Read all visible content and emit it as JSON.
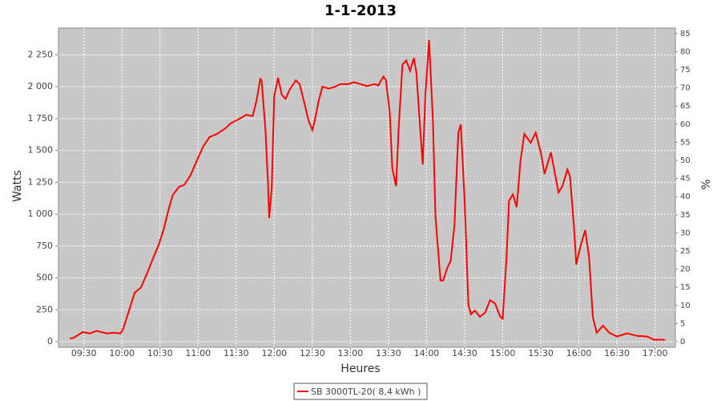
{
  "chart_data": {
    "type": "line",
    "title": "1-1-2013",
    "x_label": "Heures",
    "y_label": "Watts",
    "y2_label": "%",
    "x": [
      "09:19",
      "09:22",
      "09:29",
      "09:35",
      "09:40",
      "09:48",
      "09:54",
      "09:59",
      "10:01",
      "10:05",
      "10:10",
      "10:15",
      "10:20",
      "10:25",
      "10:29",
      "10:33",
      "10:37",
      "10:40",
      "10:45",
      "10:49",
      "10:54",
      "10:59",
      "11:04",
      "11:09",
      "11:15",
      "11:21",
      "11:26",
      "11:32",
      "11:38",
      "11:43",
      "11:46",
      "11:49",
      "11:50",
      "11:53",
      "11:55",
      "11:56",
      "11:58",
      "12:00",
      "12:03",
      "12:06",
      "12:09",
      "12:12",
      "12:17",
      "12:20",
      "12:24",
      "12:27",
      "12:30",
      "12:32",
      "12:35",
      "12:38",
      "12:43",
      "12:48",
      "12:52",
      "12:58",
      "13:03",
      "13:08",
      "13:13",
      "13:19",
      "13:22",
      "13:26",
      "13:28",
      "13:31",
      "13:33",
      "13:36",
      "13:38",
      "13:41",
      "13:44",
      "13:47",
      "13:50",
      "13:52",
      "13:55",
      "13:57",
      "13:59",
      "14:02",
      "14:05",
      "14:07",
      "14:09",
      "14:11",
      "14:13",
      "14:16",
      "14:19",
      "14:22",
      "14:25",
      "14:27",
      "14:30",
      "14:33",
      "14:35",
      "14:38",
      "14:42",
      "14:46",
      "14:50",
      "14:54",
      "14:58",
      "15:00",
      "15:03",
      "15:05",
      "15:08",
      "15:11",
      "15:14",
      "15:17",
      "15:22",
      "15:26",
      "15:30",
      "15:33",
      "15:36",
      "15:38",
      "15:41",
      "15:44",
      "15:47",
      "15:51",
      "15:53",
      "15:56",
      "15:58",
      "16:01",
      "16:05",
      "16:08",
      "16:11",
      "16:14",
      "16:19",
      "16:24",
      "16:30",
      "16:38",
      "16:46",
      "16:54",
      "16:59",
      "17:08"
    ],
    "series": [
      {
        "name": "SB 3000TL-20( 8,4 kWh )",
        "color": "#ff0000",
        "values": [
          25,
          30,
          75,
          65,
          85,
          65,
          70,
          65,
          100,
          225,
          385,
          425,
          540,
          665,
          760,
          885,
          1045,
          1150,
          1215,
          1230,
          1305,
          1420,
          1530,
          1605,
          1630,
          1670,
          1715,
          1745,
          1780,
          1770,
          1890,
          2060,
          2050,
          1670,
          1265,
          970,
          1200,
          1925,
          2070,
          1935,
          1905,
          1975,
          2050,
          2020,
          1860,
          1735,
          1660,
          1735,
          1890,
          2000,
          1985,
          2000,
          2020,
          2020,
          2035,
          2020,
          2005,
          2020,
          2010,
          2080,
          2050,
          1800,
          1360,
          1220,
          1670,
          2175,
          2205,
          2125,
          2225,
          2110,
          1670,
          1390,
          1925,
          2365,
          1735,
          980,
          730,
          480,
          480,
          570,
          635,
          915,
          1640,
          1705,
          1105,
          290,
          215,
          245,
          195,
          225,
          325,
          300,
          195,
          180,
          665,
          1105,
          1155,
          1055,
          1420,
          1630,
          1560,
          1640,
          1485,
          1315,
          1420,
          1485,
          1325,
          1170,
          1220,
          1350,
          1295,
          915,
          605,
          740,
          875,
          665,
          195,
          70,
          125,
          70,
          40,
          65,
          45,
          40,
          15,
          15
        ]
      }
    ],
    "xlim": [
      "09:10",
      "17:16"
    ],
    "xticks": [
      "09:30",
      "10:00",
      "10:30",
      "11:00",
      "11:30",
      "12:00",
      "12:30",
      "13:00",
      "13:30",
      "14:00",
      "14:30",
      "15:00",
      "15:30",
      "16:00",
      "16:30",
      "17:00"
    ],
    "ylim": [
      0,
      2460
    ],
    "yticks": [
      0,
      250,
      500,
      750,
      {
        "value": 1000,
        "label": "1 000"
      },
      {
        "value": 1250,
        "label": "1 250"
      },
      {
        "value": 1500,
        "label": "1 500"
      },
      {
        "value": 1750,
        "label": "1 750"
      },
      {
        "value": 2000,
        "label": "2 000"
      },
      {
        "value": 2250,
        "label": "2 250"
      }
    ],
    "y2lim": [
      0,
      86.5
    ],
    "y2ticks": [
      0,
      5,
      10,
      15,
      20,
      25,
      30,
      35,
      40,
      45,
      50,
      55,
      60,
      65,
      70,
      75,
      80,
      85
    ],
    "grid": true,
    "legend": "bottom"
  }
}
